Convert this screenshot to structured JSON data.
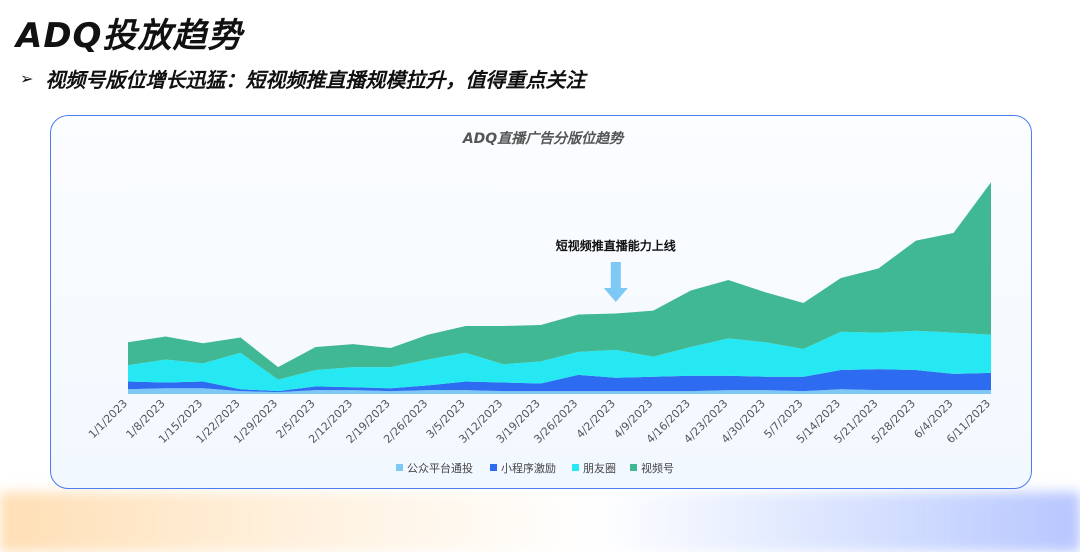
{
  "page": {
    "title": "ADQ投放趋势",
    "bullet": "➢",
    "subtitle": "视频号版位增长迅猛：短视频推直播规模拉升，值得重点关注"
  },
  "chart_data": {
    "type": "area",
    "stacked": true,
    "title": "ADQ直播广告分版位趋势",
    "annotation": {
      "text": "短视频推直播能力上线",
      "at": "4/2/2023",
      "marker": "down-arrow-icon"
    },
    "categories": [
      "1/1/2023",
      "1/8/2023",
      "1/15/2023",
      "1/22/2023",
      "1/29/2023",
      "2/5/2023",
      "2/12/2023",
      "2/19/2023",
      "2/26/2023",
      "3/5/2023",
      "3/12/2023",
      "3/19/2023",
      "3/26/2023",
      "4/2/2023",
      "4/9/2023",
      "4/16/2023",
      "4/23/2023",
      "4/30/2023",
      "5/7/2023",
      "5/14/2023",
      "5/21/2023",
      "5/28/2023",
      "6/4/2023",
      "6/11/2023"
    ],
    "series": [
      {
        "name": "公众平台通投",
        "color": "#7ec8f5",
        "values": [
          5,
          6,
          6,
          3,
          2,
          4,
          4,
          3,
          4,
          4,
          3,
          3,
          3,
          3,
          3,
          3,
          4,
          4,
          3,
          5,
          4,
          4,
          4,
          4
        ]
      },
      {
        "name": "小程序激励",
        "color": "#2d6cf0",
        "values": [
          8,
          6,
          7,
          2,
          1,
          4,
          3,
          3,
          5,
          9,
          9,
          8,
          17,
          14,
          15,
          16,
          15,
          14,
          15,
          20,
          22,
          21,
          17,
          18
        ]
      },
      {
        "name": "朋友圈",
        "color": "#26e8f2",
        "values": [
          17,
          24,
          19,
          38,
          12,
          17,
          21,
          22,
          27,
          30,
          19,
          23,
          24,
          29,
          21,
          30,
          39,
          36,
          29,
          40,
          38,
          41,
          43,
          40
        ]
      },
      {
        "name": "视频号",
        "color": "#40b894",
        "values": [
          24,
          24,
          21,
          16,
          13,
          24,
          24,
          20,
          26,
          28,
          40,
          38,
          39,
          38,
          48,
          59,
          61,
          52,
          48,
          56,
          67,
          94,
          104,
          159
        ]
      }
    ],
    "ylim": [
      0,
      240
    ],
    "grid": false,
    "legend": "bottom"
  }
}
